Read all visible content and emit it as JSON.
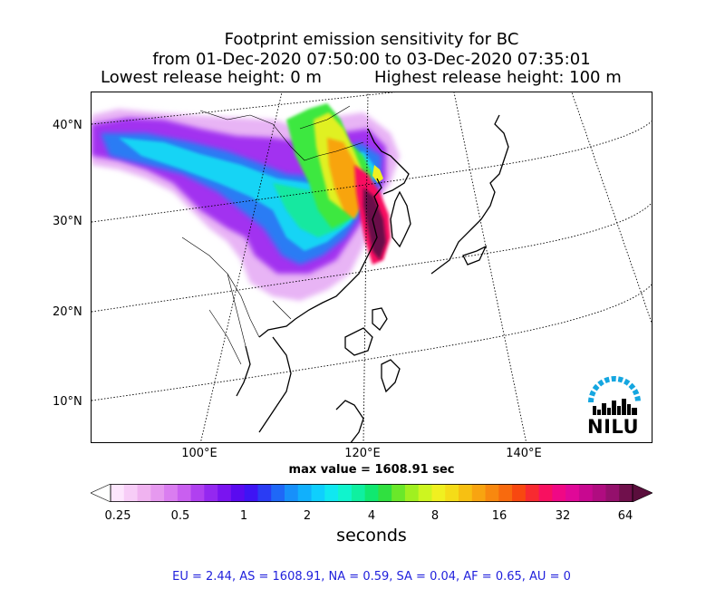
{
  "title": {
    "line1": "Footprint emission sensitivity for BC",
    "line2": "from 01-Dec-2020 07:50:00 to 03-Dec-2020 07:35:01",
    "lowest": "Lowest release height: 0 m",
    "highest": "Highest release height: 100 m"
  },
  "map": {
    "lat_labels": [
      "40°N",
      "30°N",
      "20°N",
      "10°N"
    ],
    "lon_labels": [
      "100°E",
      "120°E",
      "140°E"
    ],
    "max_value": "max value = 1608.91 sec",
    "logo_text": "NILU"
  },
  "colorbar": {
    "ticks": [
      "0.25",
      "0.5",
      "1",
      "2",
      "4",
      "8",
      "16",
      "32",
      "64"
    ],
    "unit": "seconds",
    "colors": [
      "#fde6fd",
      "#f7cdf7",
      "#f0b3f0",
      "#e699ef",
      "#da7df0",
      "#c95ff0",
      "#b040f0",
      "#9428f0",
      "#7a14f0",
      "#5a0af0",
      "#3e14f4",
      "#2a3cf4",
      "#1f68f7",
      "#1790fa",
      "#11b0fc",
      "#0fcffd",
      "#10e8f0",
      "#10f4cd",
      "#0ff0a0",
      "#10e870",
      "#30e040",
      "#6ae82a",
      "#a0f020",
      "#cdf520",
      "#f0f020",
      "#f5dc18",
      "#f7c012",
      "#f8a410",
      "#f8880f",
      "#f86a0e",
      "#f84810",
      "#f82a30",
      "#f81060",
      "#f00885",
      "#e00898",
      "#c80890",
      "#b00c80",
      "#94106c",
      "#70104c"
    ],
    "ends": {
      "low": "#ffffff",
      "high": "#5a0e3c"
    }
  },
  "regions": "EU = 2.44,  AS = 1608.91,  NA = 0.59,  SA = 0.04,  AF = 0.65,  AU = 0"
}
